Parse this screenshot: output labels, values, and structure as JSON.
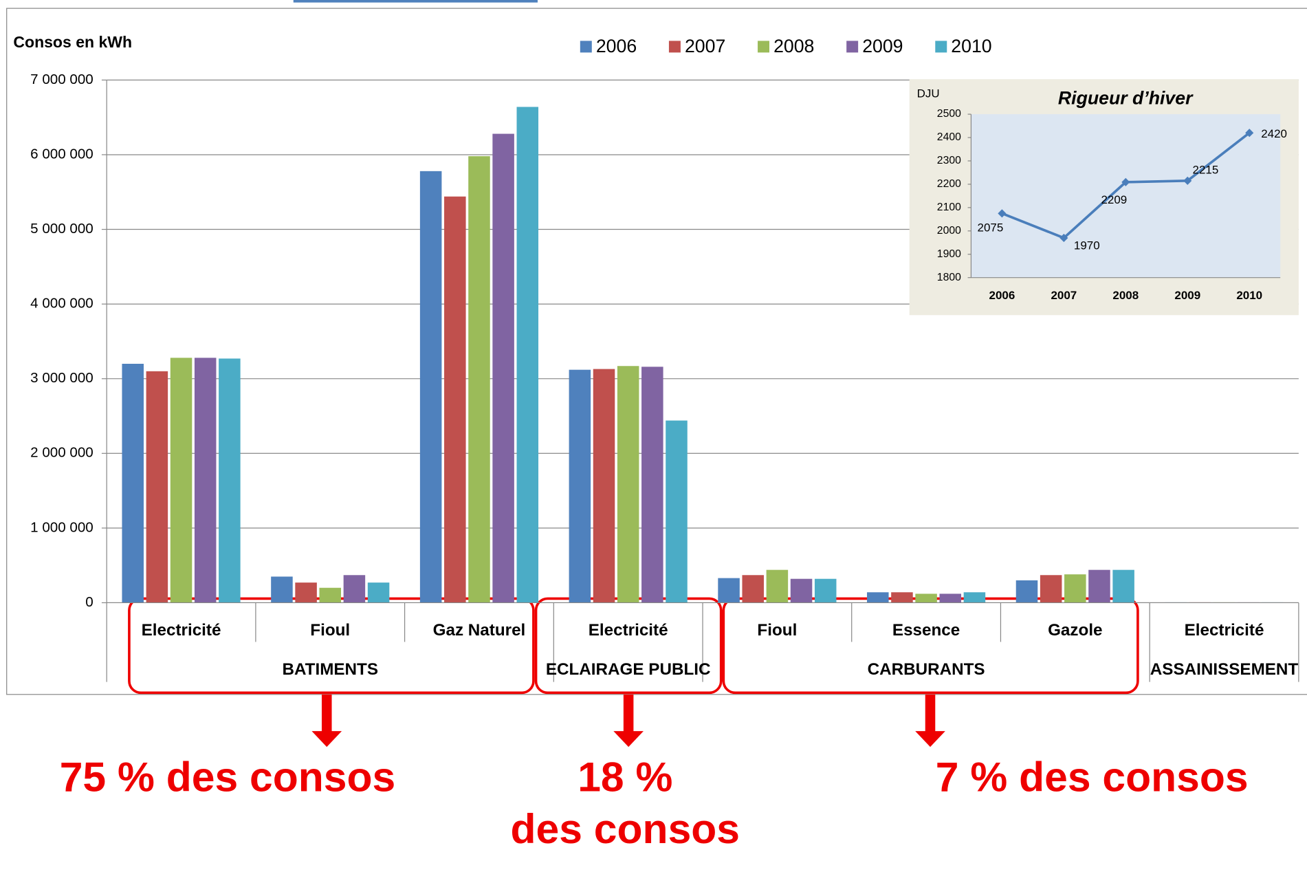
{
  "chart_data": [
    {
      "type": "bar",
      "title": "Consos en kWh",
      "groups": [
        {
          "name": "BATIMENTS",
          "categories": [
            "Electricité",
            "Fioul",
            "Gaz Naturel"
          ]
        },
        {
          "name": "ECLAIRAGE PUBLIC",
          "categories": [
            "Electricité"
          ]
        },
        {
          "name": "CARBURANTS",
          "categories": [
            "Fioul",
            "Essence",
            "Gazole"
          ]
        },
        {
          "name": "ASSAINISSEMENT",
          "categories": [
            "Electricité"
          ]
        }
      ],
      "series": [
        {
          "name": "2006",
          "color": "#4f81bd",
          "values": [
            3200000,
            350000,
            5780000,
            3120000,
            330000,
            140000,
            300000,
            5000
          ]
        },
        {
          "name": "2007",
          "color": "#c0504d",
          "values": [
            3100000,
            270000,
            5440000,
            3130000,
            370000,
            140000,
            370000,
            5000
          ]
        },
        {
          "name": "2008",
          "color": "#9bbb59",
          "values": [
            3280000,
            200000,
            5980000,
            3170000,
            440000,
            120000,
            380000,
            5000
          ]
        },
        {
          "name": "2009",
          "color": "#8064a2",
          "values": [
            3280000,
            370000,
            6280000,
            3160000,
            320000,
            120000,
            440000,
            5000
          ]
        },
        {
          "name": "2010",
          "color": "#4bacc6",
          "values": [
            3270000,
            270000,
            6640000,
            2440000,
            320000,
            140000,
            440000,
            5000
          ]
        }
      ],
      "ylim": [
        0,
        7000000
      ],
      "yticks": [
        0,
        {
          "value": 1000000,
          "label": "1 000 000"
        },
        {
          "value": 2000000,
          "label": "2 000 000"
        },
        {
          "value": 3000000,
          "label": "3 000 000"
        },
        {
          "value": 4000000,
          "label": "4 000 000"
        },
        {
          "value": 5000000,
          "label": "5 000 000"
        },
        {
          "value": 6000000,
          "label": "6 000 000"
        },
        {
          "value": 7000000,
          "label": "7 000 000"
        }
      ],
      "grid": true,
      "legend": "top"
    },
    {
      "type": "line",
      "title": "Rigueur d’hiver",
      "y_label": "DJU",
      "categories": [
        "2006",
        "2007",
        "2008",
        "2009",
        "2010"
      ],
      "values": [
        2075,
        1970,
        2209,
        2215,
        2420
      ],
      "color": "#4a7ebb",
      "ylim": [
        1800,
        2500
      ],
      "yticks": [
        1800,
        1900,
        2000,
        2100,
        2200,
        2300,
        2400,
        2500
      ],
      "grid": false
    }
  ],
  "annotations": [
    [
      "75 % des consos"
    ],
    [
      "18 %",
      "des consos"
    ],
    [
      "7 % des consos"
    ]
  ]
}
